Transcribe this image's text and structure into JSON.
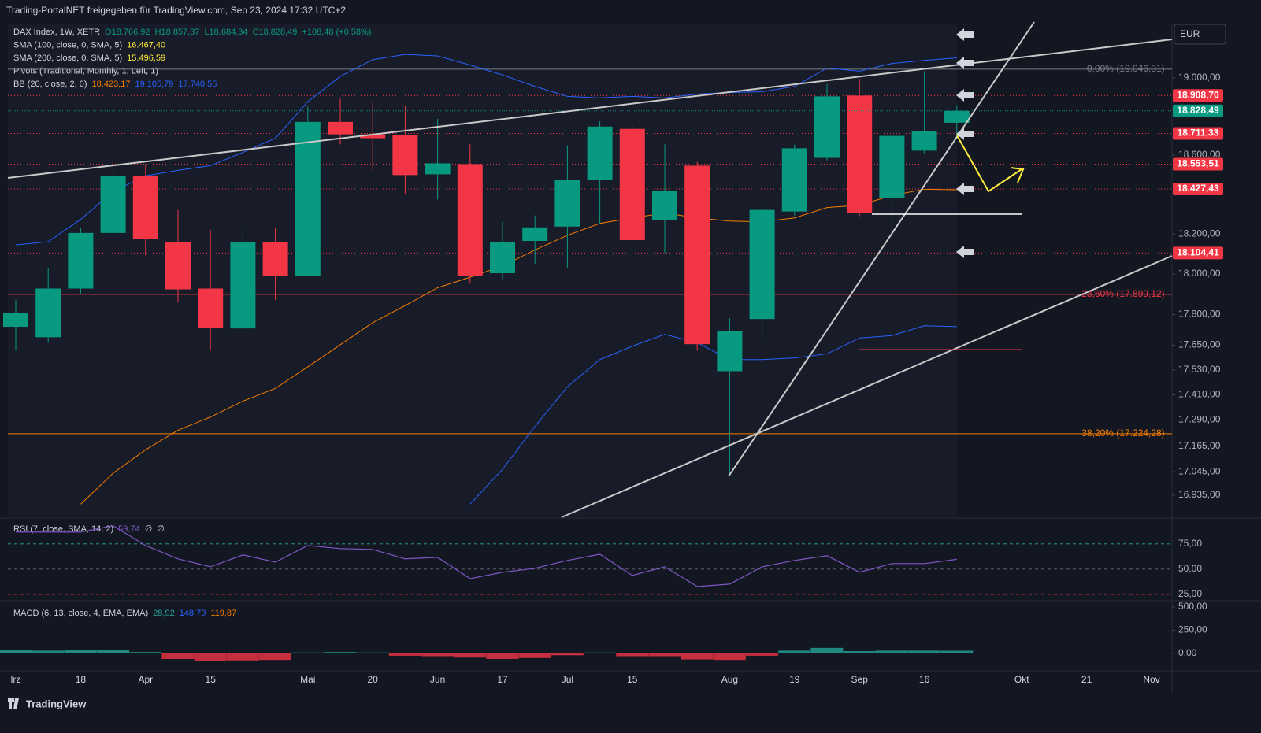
{
  "header": "Trading-PortalNET freigegeben für TradingView.com, Sep 23, 2024 17:32 UTC+2",
  "currency": "EUR",
  "footer": "TradingView",
  "chart_data": [
    {
      "type": "candlestick",
      "log": true,
      "legend": [
        {
          "text": "DAX Index, 1W, XETR",
          "values": [
            "O18.766,92",
            "H18.857,37",
            "L18.684,34",
            "C18.828,49",
            "+108,48 (+0,58%)"
          ],
          "colors": [
            "#089981",
            "#089981",
            "#089981",
            "#089981",
            "#089981"
          ]
        },
        {
          "text": "SMA (100, close, 0, SMA, 5)",
          "values": [
            "16.467,40"
          ],
          "colors": [
            "#ffeb3b"
          ]
        },
        {
          "text": "SMA (200, close, 0, SMA, 5)",
          "values": [
            "15.496,59"
          ],
          "colors": [
            "#ffeb3b"
          ]
        },
        {
          "text": "Pivots (Traditional, Monthly, 1, Left, 1)",
          "values": [],
          "colors": []
        },
        {
          "text": "BB (20, close, 2, 0)",
          "values": [
            "18.423,17",
            "19.105,79",
            "17.740,55"
          ],
          "colors": [
            "#f57c00",
            "#2962ff",
            "#2962ff"
          ]
        }
      ],
      "categories": [
        "lrz",
        null,
        "18",
        null,
        "Apr",
        null,
        "15",
        null,
        null,
        "Mai",
        null,
        "20",
        null,
        "Jun",
        null,
        "17",
        null,
        "Jul",
        null,
        "15",
        null,
        null,
        "Aug",
        null,
        "19",
        null,
        "Sep",
        null,
        "16",
        null,
        null,
        "Okt",
        null,
        "21",
        null,
        "Nov"
      ],
      "open": [
        17740,
        17689,
        17928,
        18205,
        18494,
        18161,
        17928,
        17732,
        18161,
        17992,
        18771,
        18707,
        18703,
        18502,
        18554,
        18004,
        18165,
        18237,
        18474,
        18735,
        18269,
        18546,
        17524,
        17778,
        18313,
        18586,
        18908,
        18382,
        18623,
        18766.92,
        null,
        null,
        null,
        null,
        null,
        null
      ],
      "high": [
        17872,
        18028,
        18233,
        18534,
        18554,
        18321,
        18221,
        18221,
        18233,
        18851,
        18892,
        18876,
        18855,
        18787,
        18655,
        18261,
        18293,
        18651,
        18775,
        18747,
        18655,
        18566,
        17782,
        18345,
        18655,
        18968,
        18996,
        18699,
        19036,
        18857.37,
        null,
        null,
        null,
        null,
        null,
        null
      ],
      "low": [
        17623,
        17662,
        17900,
        18193,
        18092,
        17859,
        17627,
        17732,
        17872,
        17992,
        18655,
        18522,
        18402,
        18374,
        17952,
        17972,
        18052,
        18032,
        18253,
        18169,
        18104,
        17623,
        17024,
        17670,
        18293,
        18574,
        18289,
        18225,
        18610,
        18684.34,
        null,
        null,
        null,
        null,
        null,
        null
      ],
      "close": [
        17809,
        17928,
        18205,
        18494,
        18173,
        17924,
        17736,
        18161,
        17992,
        18771,
        18707,
        18687,
        18498,
        18558,
        17992,
        18161,
        18233,
        18474,
        18747,
        18169,
        18418,
        17655,
        17720,
        18321,
        18635,
        18904,
        18305,
        18699,
        18723,
        18828.49,
        null,
        null,
        null,
        null,
        null,
        null
      ],
      "up_color": "#089981",
      "down_color": "#f23645",
      "overlays": [
        {
          "color": "#2962ff",
          "values": [
            18145,
            18161,
            18273,
            18414,
            18494,
            18522,
            18546,
            18614,
            18687,
            18876,
            19008,
            19096,
            19124,
            19116,
            19068,
            19016,
            18956,
            18904,
            18896,
            18904,
            18896,
            18916,
            18924,
            18928,
            18956,
            19052,
            19036,
            19076,
            19092,
            19105.79,
            null,
            null,
            null,
            null,
            null,
            null
          ]
        },
        {
          "color": "#f57c00",
          "values": [
            null,
            null,
            16893,
            17038,
            17148,
            17241,
            17304,
            17380,
            17441,
            17545,
            17652,
            17760,
            17844,
            17932,
            17984,
            18040,
            18120,
            18193,
            18253,
            18281,
            18305,
            18281,
            18265,
            18261,
            18281,
            18333,
            18345,
            18394,
            18426,
            18423.17,
            null,
            null,
            null,
            null,
            null,
            null
          ]
        },
        {
          "color": "#2962ff",
          "values": [
            null,
            null,
            null,
            null,
            null,
            null,
            null,
            null,
            null,
            null,
            null,
            null,
            null,
            null,
            16893,
            17056,
            17259,
            17449,
            17580,
            17645,
            17703,
            17662,
            17580,
            17580,
            17588,
            17608,
            17685,
            17697,
            17745,
            17740.55,
            null,
            null,
            null,
            null,
            null,
            null
          ]
        }
      ],
      "ylim": [
        16832,
        19287
      ],
      "yticks": [
        {
          "value": 19000,
          "label": "19.000,00"
        },
        {
          "value": 18600,
          "label": "18.600,00"
        },
        {
          "value": 18200,
          "label": "18.200,00"
        },
        {
          "value": 18000,
          "label": "18.000,00"
        },
        {
          "value": 17800,
          "label": "17.800,00"
        },
        {
          "value": 17650,
          "label": "17.650,00"
        },
        {
          "value": 17530,
          "label": "17.530,00"
        },
        {
          "value": 17410,
          "label": "17.410,00"
        },
        {
          "value": 17290,
          "label": "17.290,00"
        },
        {
          "value": 17165,
          "label": "17.165,00"
        },
        {
          "value": 17045,
          "label": "17.045,00"
        },
        {
          "value": 16935,
          "label": "16.935,00"
        }
      ],
      "levels": [
        {
          "value": 18908.7,
          "label": "18.908,70"
        },
        {
          "value": 18711.33,
          "label": "18.711,33"
        },
        {
          "value": 18553.51,
          "label": "18.553,51"
        },
        {
          "value": 18427.43,
          "label": "18.427,43"
        },
        {
          "value": 18104.41,
          "label": "18.104,41"
        }
      ],
      "level_color": "#f23645",
      "last": {
        "value": 18828.49,
        "label": "18.828,49"
      },
      "fibs": [
        {
          "value": 19046.31,
          "label": "0,00% (19.046,31) -",
          "color": "#787b86"
        },
        {
          "value": 17899.12,
          "label": "23,60% (17.899,12) -",
          "color": "#f23645"
        },
        {
          "value": 17224.28,
          "label": "38,20% (17.224,28) -",
          "color": "#f57c00"
        }
      ]
    },
    {
      "type": "line",
      "title": "RSI (7, close, SMA, 14, 2)",
      "legend_values": [
        "59,74",
        "∅",
        "∅"
      ],
      "color": "#7e57c2",
      "values": [
        86.7,
        86.7,
        86.7,
        93.0,
        73.4,
        60.2,
        52.3,
        64.1,
        57.0,
        73.4,
        70.3,
        69.5,
        60.2,
        61.7,
        40.6,
        46.9,
        50.8,
        58.6,
        64.8,
        43.8,
        52.3,
        32.8,
        35.2,
        52.3,
        58.6,
        63.3,
        46.9,
        55.5,
        55.5,
        59.74
      ],
      "ylim": [
        19.5,
        99
      ],
      "yticks": [
        {
          "value": 75,
          "label": "75,00"
        },
        {
          "value": 50,
          "label": "50,00"
        },
        {
          "value": 25,
          "label": "25,00"
        }
      ]
    },
    {
      "type": "bar",
      "title": "MACD (6, 13, close, 4, EMA, EMA)",
      "legend_values": [
        "28,92",
        "148,79",
        "119,87"
      ],
      "legend_colors": [
        "#26a69a",
        "#2962ff",
        "#f57c00"
      ],
      "up_color": "#26a69a",
      "down_color": "#f23645",
      "values": [
        40,
        30,
        35,
        40,
        15,
        -60,
        -80,
        -75,
        -70,
        10,
        15,
        10,
        -25,
        -30,
        -45,
        -60,
        -50,
        -20,
        10,
        -30,
        -30,
        -65,
        -70,
        -25,
        30,
        60,
        25,
        30,
        30,
        28.92
      ],
      "ylim": [
        -170,
        550
      ],
      "yticks": [
        {
          "value": 500,
          "label": "500,00"
        },
        {
          "value": 250,
          "label": "250,00"
        },
        {
          "value": 0,
          "label": "0,00"
        }
      ]
    }
  ]
}
